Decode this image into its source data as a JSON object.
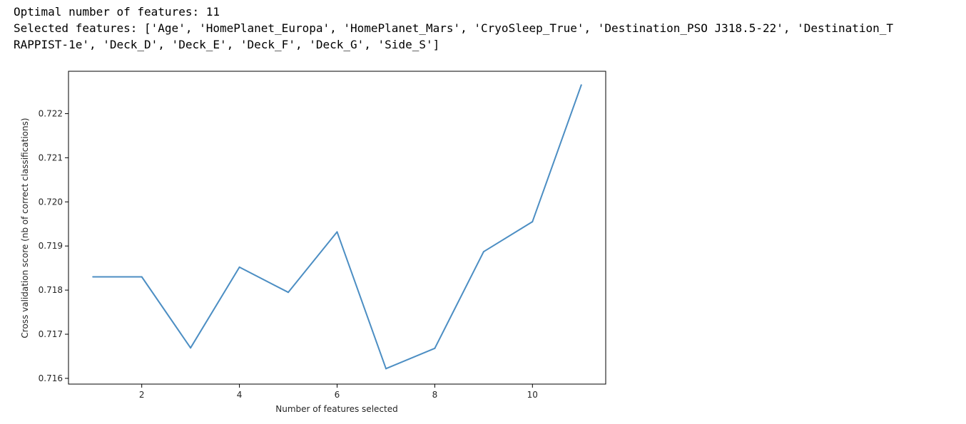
{
  "output": {
    "lines": [
      "Optimal number of features: 11",
      "Selected features: ['Age', 'HomePlanet_Europa', 'HomePlanet_Mars', 'CryoSleep_True', 'Destination_PSO J318.5-22', 'Destination_T",
      "RAPPIST-1e', 'Deck_D', 'Deck_E', 'Deck_F', 'Deck_G', 'Side_S']"
    ]
  },
  "chart_data": {
    "type": "line",
    "title": "",
    "xlabel": "Number of features selected",
    "ylabel": "Cross validation score (nb of correct classifications)",
    "xlim": [
      0.5,
      11.5
    ],
    "ylim": [
      0.71587,
      0.72296
    ],
    "xticks": [
      2,
      4,
      6,
      8,
      10
    ],
    "yticks": [
      0.716,
      0.717,
      0.718,
      0.719,
      0.72,
      0.721,
      0.722
    ],
    "ytick_labels": [
      "0.716",
      "0.717",
      "0.718",
      "0.719",
      "0.720",
      "0.721",
      "0.722"
    ],
    "grid": false,
    "series": [
      {
        "color": "#4c8ec3",
        "x": [
          1,
          2,
          3,
          4,
          5,
          6,
          7,
          8,
          9,
          10,
          11
        ],
        "y": [
          0.7183,
          0.7183,
          0.71669,
          0.71852,
          0.71795,
          0.71932,
          0.71622,
          0.71668,
          0.71887,
          0.71955,
          0.72265
        ]
      }
    ]
  }
}
